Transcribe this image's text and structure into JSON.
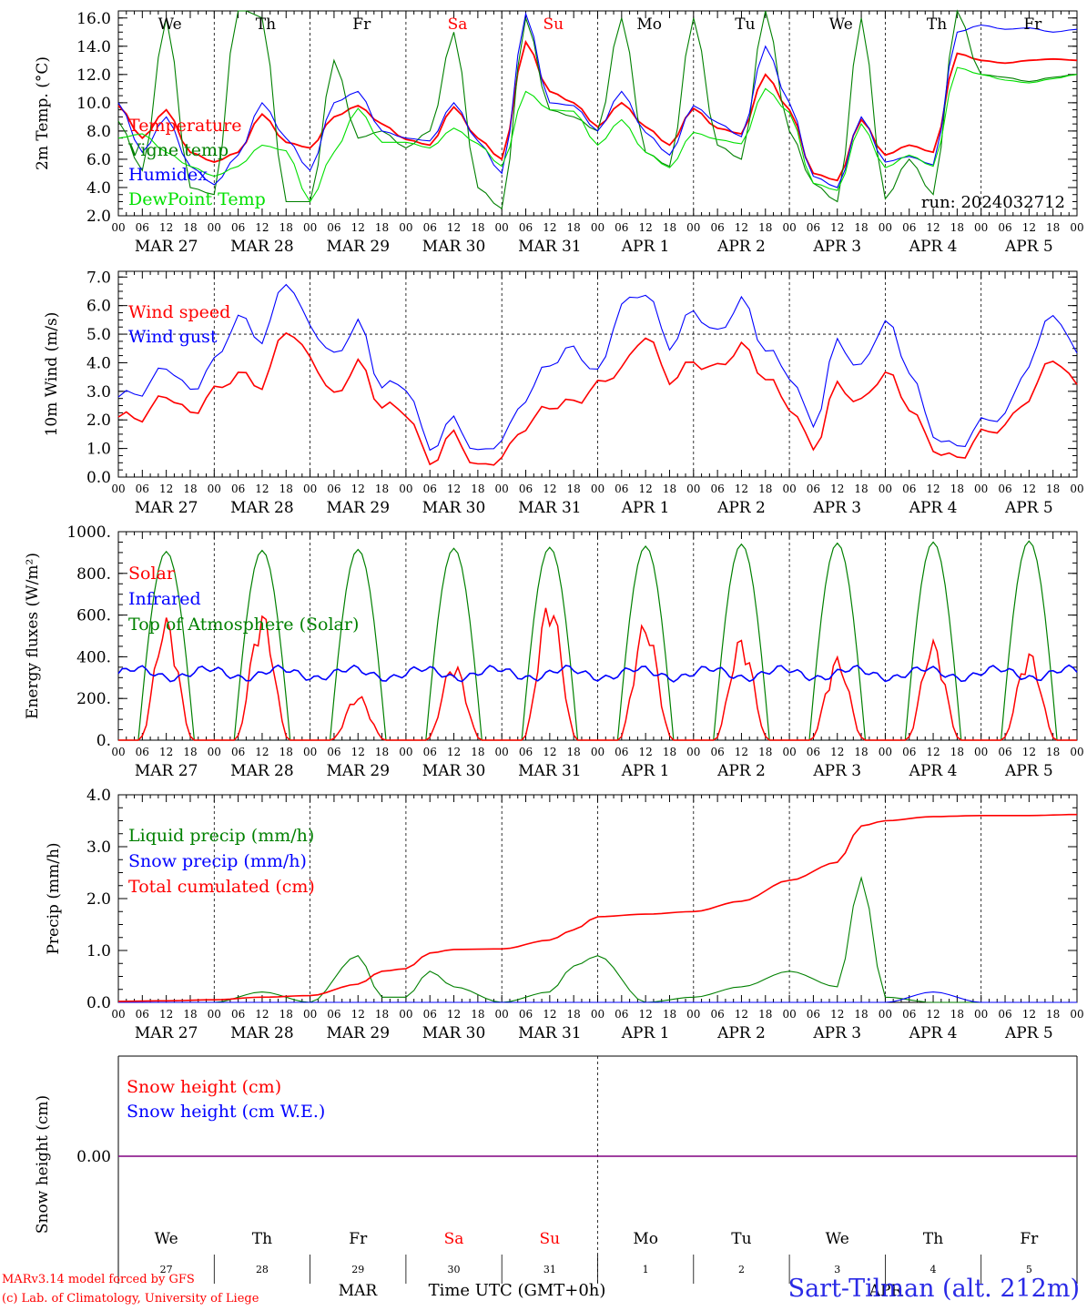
{
  "footer": {
    "model": "MARv3.14 model forced by GFS",
    "credit": "(c) Lab. of Climatology, University of Liege",
    "station": "Sart-Tilman (alt. 212m)",
    "xlabel": "Time UTC (GMT+0h)",
    "month_mar": "MAR",
    "month_apr": "APR"
  },
  "colors": {
    "red": "#ff0000",
    "green": "#008000",
    "blue": "#0000ff",
    "lime": "#00e000",
    "purple": "#800080"
  },
  "chart_data": [
    {
      "id": "temperature",
      "type": "line",
      "ylabel": "2m Temp. (°C)",
      "ylim": [
        2,
        16.5
      ],
      "yticks": [
        "2.0",
        "4.0",
        "6.0",
        "8.0",
        "10.0",
        "12.0",
        "14.0",
        "16.0"
      ],
      "ytick_values": [
        2,
        4,
        6,
        8,
        10,
        12,
        14,
        16
      ],
      "weekday_labels": [
        {
          "label": "We",
          "color": "black"
        },
        {
          "label": "Th",
          "color": "black"
        },
        {
          "label": "Fr",
          "color": "black"
        },
        {
          "label": "Sa",
          "color": "red"
        },
        {
          "label": "Su",
          "color": "red"
        },
        {
          "label": "Mo",
          "color": "black"
        },
        {
          "label": "Tu",
          "color": "black"
        },
        {
          "label": "We",
          "color": "black"
        },
        {
          "label": "Th",
          "color": "black"
        },
        {
          "label": "Fr",
          "color": "black"
        }
      ],
      "annotation": "run: 2024032712",
      "x_hours": [
        0,
        6,
        12,
        18,
        24,
        30,
        36,
        42,
        48,
        54,
        60,
        66,
        72,
        78,
        84,
        90,
        96,
        102,
        108,
        114,
        120,
        126,
        132,
        138,
        144,
        150,
        156,
        162,
        168,
        174,
        180,
        186,
        192,
        198,
        204,
        210,
        216,
        222,
        228,
        234,
        240
      ],
      "series": [
        {
          "name": "Temperature",
          "color": "red",
          "values": [
            9.8,
            7.5,
            9.5,
            6.5,
            5.8,
            6.5,
            9.2,
            7.2,
            6.8,
            9.0,
            9.8,
            8.5,
            7.4,
            7.0,
            9.7,
            7.5,
            6.0,
            14.3,
            10.8,
            10.0,
            8.3,
            10.0,
            8.3,
            7.0,
            9.6,
            8.2,
            7.8,
            12.0,
            9.5,
            5.0,
            4.5,
            8.8,
            6.3,
            7.0,
            6.5,
            13.5,
            13.0,
            12.8,
            13.0,
            13.1,
            13.0
          ]
        },
        {
          "name": "Vigne temp",
          "color": "green",
          "values": [
            8.7,
            5.2,
            16.0,
            4.0,
            3.5,
            17.0,
            16.0,
            3.0,
            3.0,
            13.0,
            7.5,
            8.0,
            6.8,
            8.0,
            15.0,
            4.0,
            2.5,
            16.0,
            9.5,
            9.0,
            8.0,
            16.0,
            6.5,
            5.5,
            16.0,
            7.0,
            6.0,
            16.5,
            8.0,
            4.3,
            3.0,
            16.0,
            3.2,
            6.0,
            3.5,
            16.5,
            12.0,
            11.8,
            11.5,
            11.8,
            12.0
          ]
        },
        {
          "name": "Humidex",
          "color": "blue",
          "values": [
            10.0,
            6.5,
            9.0,
            5.5,
            4.2,
            6.3,
            10.0,
            7.5,
            5.2,
            10.0,
            10.8,
            8.0,
            7.5,
            7.3,
            10.0,
            7.3,
            5.0,
            16.3,
            10.0,
            9.8,
            8.0,
            10.8,
            7.9,
            6.3,
            9.8,
            8.6,
            7.6,
            14.0,
            10.0,
            4.8,
            4.0,
            9.0,
            5.8,
            6.2,
            5.6,
            15.0,
            15.5,
            15.2,
            15.3,
            15.0,
            15.2
          ]
        },
        {
          "name": "DewPoint Temp",
          "color": "lime",
          "values": [
            7.5,
            7.8,
            6.5,
            5.5,
            4.8,
            5.5,
            7.0,
            6.6,
            3.0,
            6.5,
            9.6,
            7.2,
            7.2,
            6.8,
            8.2,
            7.1,
            5.5,
            10.8,
            9.5,
            9.4,
            7.0,
            8.8,
            6.5,
            5.4,
            7.9,
            7.4,
            7.1,
            11.0,
            9.3,
            4.3,
            3.8,
            8.5,
            5.4,
            6.3,
            5.5,
            12.5,
            12.0,
            11.6,
            11.4,
            11.7,
            12.0
          ]
        }
      ]
    },
    {
      "id": "wind",
      "type": "line",
      "ylabel": "10m Wind (m/s)",
      "ylim": [
        0,
        7.2
      ],
      "yticks": [
        "0.0",
        "1.0",
        "2.0",
        "3.0",
        "4.0",
        "5.0",
        "6.0",
        "7.0"
      ],
      "ytick_values": [
        0,
        1,
        2,
        3,
        4,
        5,
        6,
        7
      ],
      "ref_line": 5.0,
      "x_hours": [
        0,
        6,
        12,
        18,
        24,
        30,
        36,
        42,
        48,
        54,
        60,
        66,
        72,
        78,
        84,
        90,
        96,
        102,
        108,
        114,
        120,
        126,
        132,
        138,
        144,
        150,
        156,
        162,
        168,
        174,
        180,
        186,
        192,
        198,
        204,
        210,
        216,
        222,
        228,
        234,
        240
      ],
      "series": [
        {
          "name": "Wind speed",
          "color": "red",
          "values": [
            2.1,
            2.1,
            2.9,
            2.2,
            3.0,
            3.6,
            3.2,
            5.2,
            4.2,
            2.8,
            4.0,
            2.5,
            2.3,
            0.5,
            1.5,
            0.3,
            0.7,
            1.8,
            2.5,
            2.6,
            3.2,
            3.8,
            5.0,
            3.4,
            4.0,
            3.8,
            4.6,
            3.5,
            2.5,
            1.0,
            3.2,
            2.6,
            3.7,
            2.5,
            1.0,
            0.6,
            1.5,
            1.8,
            2.8,
            4.2,
            3.2
          ]
        },
        {
          "name": "Wind gust",
          "color": "blue",
          "values": [
            2.8,
            3.0,
            3.9,
            3.0,
            4.0,
            5.6,
            4.8,
            6.9,
            5.3,
            4.2,
            5.4,
            3.2,
            3.2,
            1.0,
            2.0,
            0.8,
            1.3,
            2.8,
            4.0,
            4.5,
            3.6,
            6.0,
            6.5,
            4.6,
            5.8,
            5.0,
            6.2,
            4.5,
            3.6,
            1.8,
            4.7,
            3.8,
            5.5,
            3.8,
            1.5,
            1.0,
            1.9,
            2.2,
            4.0,
            5.8,
            4.3
          ]
        }
      ]
    },
    {
      "id": "energy",
      "type": "line",
      "ylabel": "Energy fluxes (W/m²)",
      "ylim": [
        0,
        1000
      ],
      "yticks": [
        "0.",
        "200.",
        "400.",
        "600.",
        "800.",
        "1000."
      ],
      "ytick_values": [
        0,
        200,
        400,
        600,
        800,
        1000
      ],
      "legend_only": [
        "Top of Atmosphere (Solar)"
      ],
      "days": 10,
      "toa_peaks": [
        905,
        910,
        915,
        920,
        925,
        930,
        940,
        945,
        950,
        955
      ],
      "solar_peaks": [
        590,
        620,
        220,
        380,
        690,
        580,
        500,
        400,
        480,
        430
      ],
      "infrared_mean": 320,
      "series": [
        {
          "name": "Solar",
          "color": "red"
        },
        {
          "name": "Infrared",
          "color": "blue"
        },
        {
          "name": "Top of Atmosphere (Solar)",
          "color": "green"
        }
      ]
    },
    {
      "id": "precip",
      "type": "line",
      "ylabel": "Precip (mm/h)",
      "ylim": [
        0,
        4.0
      ],
      "yticks": [
        "0.0",
        "1.0",
        "2.0",
        "3.0",
        "4.0"
      ],
      "ytick_values": [
        0,
        1,
        2,
        3,
        4
      ],
      "x_hours": [
        0,
        12,
        24,
        36,
        48,
        60,
        66,
        72,
        78,
        84,
        96,
        108,
        114,
        120,
        132,
        144,
        156,
        168,
        180,
        186,
        192,
        204,
        216,
        228,
        240
      ],
      "series": [
        {
          "name": "Liquid precip (mm/h)",
          "color": "green",
          "values": [
            0,
            0,
            0,
            0.2,
            0,
            0.9,
            0.1,
            0.1,
            0.6,
            0.3,
            0,
            0.2,
            0.7,
            0.9,
            0,
            0.1,
            0.3,
            0.6,
            0.3,
            2.4,
            0.1,
            0,
            0,
            0,
            0
          ]
        },
        {
          "name": "Snow precip (mm/h)",
          "color": "blue",
          "values": [
            0,
            0,
            0,
            0,
            0,
            0,
            0,
            0,
            0,
            0,
            0,
            0,
            0,
            0,
            0,
            0,
            0,
            0,
            0,
            0,
            0,
            0.2,
            0,
            0,
            0
          ]
        },
        {
          "name": "Total cumulated (cm)",
          "color": "red",
          "values": [
            0.02,
            0.03,
            0.05,
            0.1,
            0.13,
            0.35,
            0.6,
            0.65,
            0.95,
            1.02,
            1.03,
            1.2,
            1.4,
            1.65,
            1.7,
            1.75,
            1.95,
            2.35,
            2.7,
            3.4,
            3.5,
            3.58,
            3.6,
            3.6,
            3.62
          ]
        }
      ]
    },
    {
      "id": "snow",
      "type": "line",
      "ylabel": "Snow height (cm)",
      "ylim": [
        -1,
        1
      ],
      "yticks": [
        "0.00"
      ],
      "ytick_values": [
        0
      ],
      "series": [
        {
          "name": "Snow height (cm)",
          "color": "red",
          "values": [
            0,
            0
          ]
        },
        {
          "name": "Snow height (cm W.E.)",
          "color": "blue",
          "values": [
            0,
            0
          ]
        }
      ],
      "weekday_labels": [
        {
          "label": "We",
          "color": "black"
        },
        {
          "label": "Th",
          "color": "black"
        },
        {
          "label": "Fr",
          "color": "black"
        },
        {
          "label": "Sa",
          "color": "red"
        },
        {
          "label": "Su",
          "color": "red"
        },
        {
          "label": "Mo",
          "color": "black"
        },
        {
          "label": "Tu",
          "color": "black"
        },
        {
          "label": "We",
          "color": "black"
        },
        {
          "label": "Th",
          "color": "black"
        },
        {
          "label": "Fr",
          "color": "black"
        }
      ],
      "day_numbers": [
        "27",
        "28",
        "29",
        "30",
        "31",
        "1",
        "2",
        "3",
        "4",
        "5"
      ]
    }
  ],
  "xaxis": {
    "hour_ticks": [
      "00",
      "06",
      "12",
      "18"
    ],
    "final_tick": "00",
    "date_labels": [
      "MAR 27",
      "MAR 28",
      "MAR 29",
      "MAR 30",
      "MAR 31",
      "APR  1",
      "APR  2",
      "APR  3",
      "APR  4",
      "APR  5"
    ]
  }
}
